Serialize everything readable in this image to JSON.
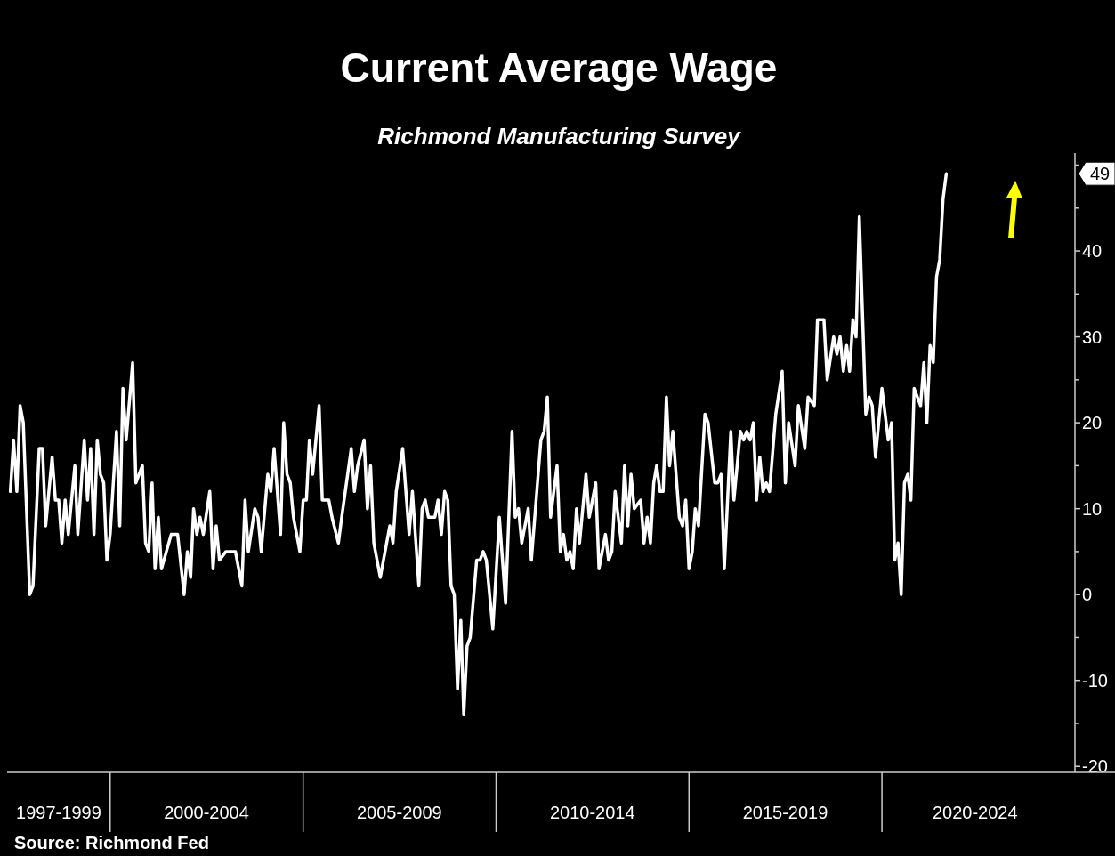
{
  "chart_data": {
    "type": "line",
    "title": "Current Average Wage",
    "subtitle": "Richmond Manufacturing Survey",
    "annotations": [
      "Source: Richmond Fed",
      "49"
    ],
    "x": [
      "1997-06",
      "1997-07",
      "1997-08",
      "1997-09",
      "1997-10",
      "1997-12",
      "1998-01",
      "1998-03",
      "1998-04",
      "1998-05",
      "1998-07",
      "1998-08",
      "1998-09",
      "1998-10",
      "1998-11",
      "1998-12",
      "1999-02",
      "1999-03",
      "1999-05",
      "1999-06",
      "1999-07",
      "1999-08",
      "1999-09",
      "1999-10",
      "1999-11",
      "1999-12",
      "2000-01",
      "2000-03",
      "2000-04",
      "2000-05",
      "2000-06",
      "2000-08",
      "2000-09",
      "2000-11",
      "2000-12",
      "2001-01",
      "2001-02",
      "2001-03",
      "2001-04",
      "2001-05",
      "2001-08",
      "2001-10",
      "2001-12",
      "2002-01",
      "2002-02",
      "2002-03",
      "2002-04",
      "2002-05",
      "2002-06",
      "2002-08",
      "2002-09",
      "2002-10",
      "2002-11",
      "2003-01",
      "2003-04",
      "2003-06",
      "2003-07",
      "2003-08",
      "2003-10",
      "2003-11",
      "2003-12",
      "2004-02",
      "2004-03",
      "2004-04",
      "2004-06",
      "2004-07",
      "2004-08",
      "2004-09",
      "2004-10",
      "2004-12",
      "2005-01",
      "2005-02",
      "2005-03",
      "2005-04",
      "2005-06",
      "2005-07",
      "2005-09",
      "2005-10",
      "2005-12",
      "2006-01",
      "2006-04",
      "2006-05",
      "2006-06",
      "2006-08",
      "2006-09",
      "2006-10",
      "2006-11",
      "2007-01",
      "2007-04",
      "2007-05",
      "2007-06",
      "2007-08",
      "2007-10",
      "2007-11",
      "2008-01",
      "2008-02",
      "2008-03",
      "2008-04",
      "2008-06",
      "2008-07",
      "2008-08",
      "2008-09",
      "2008-10",
      "2008-11",
      "2008-12",
      "2009-01",
      "2009-02",
      "2009-03",
      "2009-04",
      "2009-05",
      "2009-07",
      "2009-08",
      "2009-09",
      "2009-10",
      "2009-12",
      "2010-02",
      "2010-04",
      "2010-06",
      "2010-07",
      "2010-08",
      "2010-09",
      "2010-11",
      "2010-12",
      "2011-03",
      "2011-04",
      "2011-05",
      "2011-06",
      "2011-08",
      "2011-09",
      "2011-10",
      "2011-11",
      "2011-12",
      "2012-01",
      "2012-02",
      "2012-03",
      "2012-05",
      "2012-06",
      "2012-08",
      "2012-09",
      "2012-11",
      "2012-12",
      "2013-01",
      "2013-02",
      "2013-04",
      "2013-05",
      "2013-06",
      "2013-07",
      "2013-08",
      "2013-10",
      "2013-11",
      "2013-12",
      "2014-01",
      "2014-02",
      "2014-03",
      "2014-04",
      "2014-05",
      "2014-06",
      "2014-07",
      "2014-08",
      "2014-10",
      "2014-11",
      "2014-12",
      "2015-01",
      "2015-02",
      "2015-03",
      "2015-04",
      "2015-06",
      "2015-07",
      "2015-09",
      "2015-10",
      "2015-11",
      "2015-12",
      "2016-02",
      "2016-03",
      "2016-05",
      "2016-06",
      "2016-07",
      "2016-08",
      "2016-09",
      "2016-10",
      "2016-11",
      "2016-12",
      "2017-01",
      "2017-02",
      "2017-04",
      "2017-06",
      "2017-07",
      "2017-08",
      "2017-10",
      "2017-11",
      "2018-01",
      "2018-02",
      "2018-04",
      "2018-05",
      "2018-07",
      "2018-08",
      "2018-10",
      "2018-11",
      "2018-12",
      "2019-01",
      "2019-02",
      "2019-03",
      "2019-04",
      "2019-05",
      "2019-06",
      "2019-08",
      "2019-09",
      "2019-10",
      "2019-11",
      "2020-01",
      "2020-03",
      "2020-04",
      "2020-05",
      "2020-06",
      "2020-07",
      "2020-08",
      "2020-09",
      "2020-10",
      "2020-11",
      "2021-01",
      "2021-02",
      "2021-03",
      "2021-04",
      "2021-05",
      "2021-06",
      "2021-07",
      "2021-08",
      "2021-09"
    ],
    "series": [
      {
        "color": "#ffffff",
        "values": [
          12,
          18,
          12,
          22,
          20,
          0,
          1,
          17,
          17,
          8,
          16,
          11,
          11,
          6,
          11,
          7,
          15,
          7,
          18,
          11,
          17,
          7,
          18,
          14,
          13,
          4,
          7,
          19,
          8,
          24,
          18,
          27,
          13,
          15,
          6,
          5,
          13,
          3,
          9,
          3,
          7,
          7,
          0,
          5,
          2,
          10,
          7,
          9,
          7,
          12,
          3,
          8,
          4,
          5,
          5,
          1,
          11,
          5,
          10,
          9,
          5,
          14,
          12,
          17,
          7,
          20,
          14,
          13,
          9,
          5,
          11,
          11,
          18,
          14,
          22,
          11,
          11,
          9,
          6,
          9,
          17,
          12,
          15,
          18,
          10,
          15,
          6,
          2,
          8,
          6,
          12,
          17,
          7,
          12,
          1,
          10,
          11,
          9,
          9,
          11,
          7,
          12,
          11,
          1,
          0,
          -11,
          -3,
          -14,
          -6,
          -5,
          4,
          4,
          5,
          4,
          -4,
          9,
          -1,
          19,
          9,
          10,
          6,
          10,
          4,
          18,
          19,
          23,
          9,
          15,
          5,
          7,
          4,
          5,
          3,
          10,
          6,
          14,
          9,
          13,
          3,
          7,
          4,
          5,
          12,
          6,
          15,
          8,
          14,
          10,
          11,
          6,
          9,
          6,
          13,
          15,
          12,
          12,
          23,
          15,
          19,
          9,
          8,
          11,
          3,
          5,
          10,
          8,
          21,
          20,
          13,
          13,
          14,
          3,
          19,
          11,
          19,
          18,
          19,
          18,
          20,
          11,
          16,
          12,
          13,
          12,
          21,
          26,
          13,
          20,
          15,
          22,
          17,
          23,
          22,
          32,
          32,
          25,
          30,
          28,
          30,
          26,
          29,
          26,
          32,
          30,
          44,
          21,
          23,
          22,
          16,
          24,
          18,
          20,
          4,
          6,
          0,
          13,
          14,
          11,
          24,
          22,
          27,
          20,
          29,
          27,
          37,
          39,
          46,
          49
        ]
      }
    ],
    "xlim": [
      "1997-05",
      "2025-01"
    ],
    "xticks": [
      {
        "value": "1998-09",
        "label": "1997-1999"
      },
      {
        "value": "2000-01",
        "label": null
      },
      {
        "value": "2002-07",
        "label": "2000-2004"
      },
      {
        "value": "2005-01",
        "label": null
      },
      {
        "value": "2007-07",
        "label": "2005-2009"
      },
      {
        "value": "2010-01",
        "label": null
      },
      {
        "value": "2012-07",
        "label": "2010-2014"
      },
      {
        "value": "2015-01",
        "label": null
      },
      {
        "value": "2017-07",
        "label": "2015-2019"
      },
      {
        "value": "2020-01",
        "label": null
      },
      {
        "value": "2022-06",
        "label": "2020-2024"
      }
    ],
    "ylim": [
      -20.7,
      51.4
    ],
    "yticks": [
      -20,
      {
        "value": -15,
        "label": null
      },
      -10,
      {
        "value": -5,
        "label": null
      },
      0,
      {
        "value": 5,
        "label": null
      },
      10,
      {
        "value": 15,
        "label": null
      },
      20,
      {
        "value": 25,
        "label": null
      },
      30,
      {
        "value": 35,
        "label": null
      },
      40,
      {
        "value": 45,
        "label": null
      },
      {
        "value": 50,
        "label": null
      }
    ],
    "grid": false,
    "line_style": "solid"
  }
}
